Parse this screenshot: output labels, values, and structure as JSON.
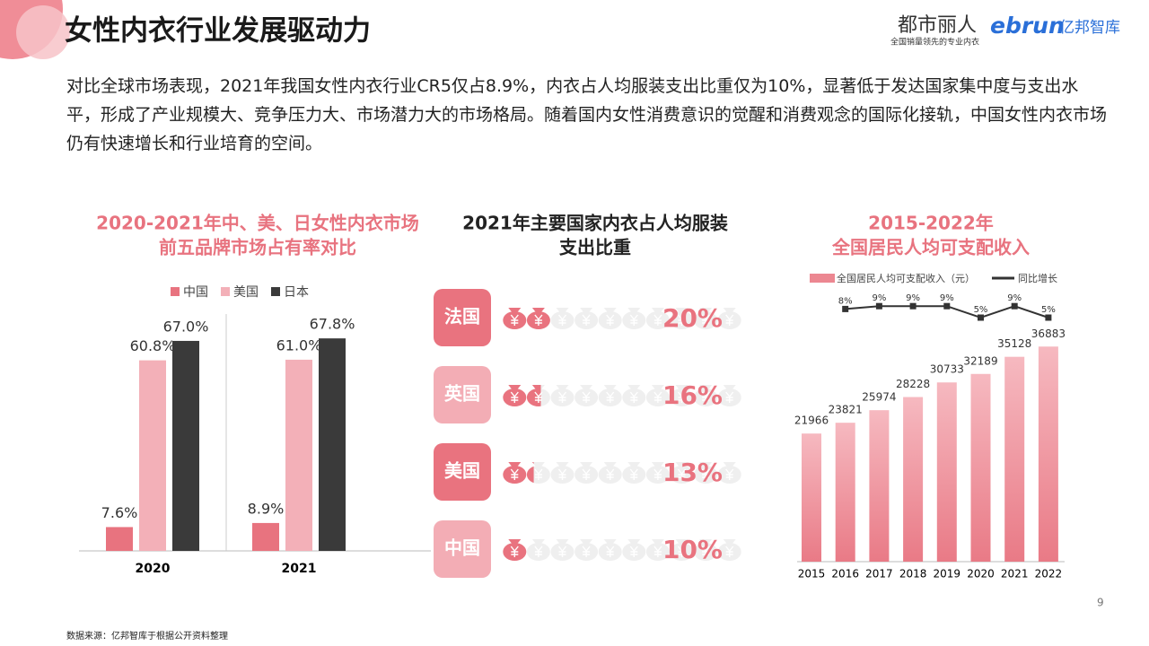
{
  "header": {
    "title": "女性内衣行业发展驱动力",
    "brand": "都市丽人",
    "brand_slogan": "全国销量领先的专业内衣",
    "partner_latin": "ebrun",
    "partner_cn": "亿邦智库",
    "paragraph": "对比全球市场表现，2021年我国女性内衣行业CR5仅占8.9%，内衣占人均服装支出比重仅为10%，显著低于发达国家集中度与支出水平，形成了产业规模大、竞争压力大、市场潜力大的市场格局。随着国内女性消费意识的觉醒和消费观念的国际化接轨，中国女性内衣市场仍有快速增长和行业培育的空间。",
    "source": "数据来源：亿邦智库于根据公开资料整理",
    "page": "9"
  },
  "chart_data": [
    {
      "type": "bar",
      "title": [
        "2020-2021年中、美、日女性内衣市场",
        "前五品牌市场占有率对比"
      ],
      "categories": [
        "2020",
        "2021"
      ],
      "ylim": [
        0,
        75
      ],
      "series": [
        {
          "name": "中国",
          "color": "#e8737f",
          "values": [
            7.6,
            8.9
          ],
          "value_labels": [
            "7.6%",
            "8.9%"
          ]
        },
        {
          "name": "美国",
          "color": "#f3b0b8",
          "values": [
            60.8,
            61.0
          ],
          "value_labels": [
            "60.8%",
            "61.0%"
          ]
        },
        {
          "name": "日本",
          "color": "#3a3a3a",
          "values": [
            67.0,
            67.8
          ],
          "value_labels": [
            "67.0%",
            "67.8%"
          ]
        }
      ]
    },
    {
      "type": "pictograph",
      "title": [
        "2021年主要国家内衣占人均服装",
        "支出比重"
      ],
      "categories": [
        "法国",
        "英国",
        "美国",
        "中国"
      ],
      "values": [
        20,
        16,
        13,
        10
      ],
      "value_labels": [
        "20%",
        "16%",
        "13%",
        "10%"
      ],
      "xlim": [
        0,
        100
      ],
      "color": "#e9737f"
    },
    {
      "type": "combo",
      "title": [
        "2015-2022年",
        "全国居民人均可支配收入"
      ],
      "categories": [
        "2015",
        "2016",
        "2017",
        "2018",
        "2019",
        "2020",
        "2021",
        "2022"
      ],
      "ylim": [
        0,
        40000
      ],
      "y2lim": [
        0,
        10
      ],
      "series": [
        {
          "name": "全国居民人均可支配收入（元）",
          "color": "#ec8791",
          "values": [
            21966,
            23821,
            25974,
            28228,
            30733,
            32189,
            35128,
            36883
          ]
        },
        {
          "name": "同比增长",
          "color": "#333333",
          "axis": "y2",
          "values": [
            null,
            8,
            9,
            9,
            9,
            5,
            9,
            5
          ],
          "value_labels": [
            null,
            "8%",
            "9%",
            "9%",
            "9%",
            "5%",
            "9%",
            "5%"
          ]
        }
      ]
    }
  ]
}
